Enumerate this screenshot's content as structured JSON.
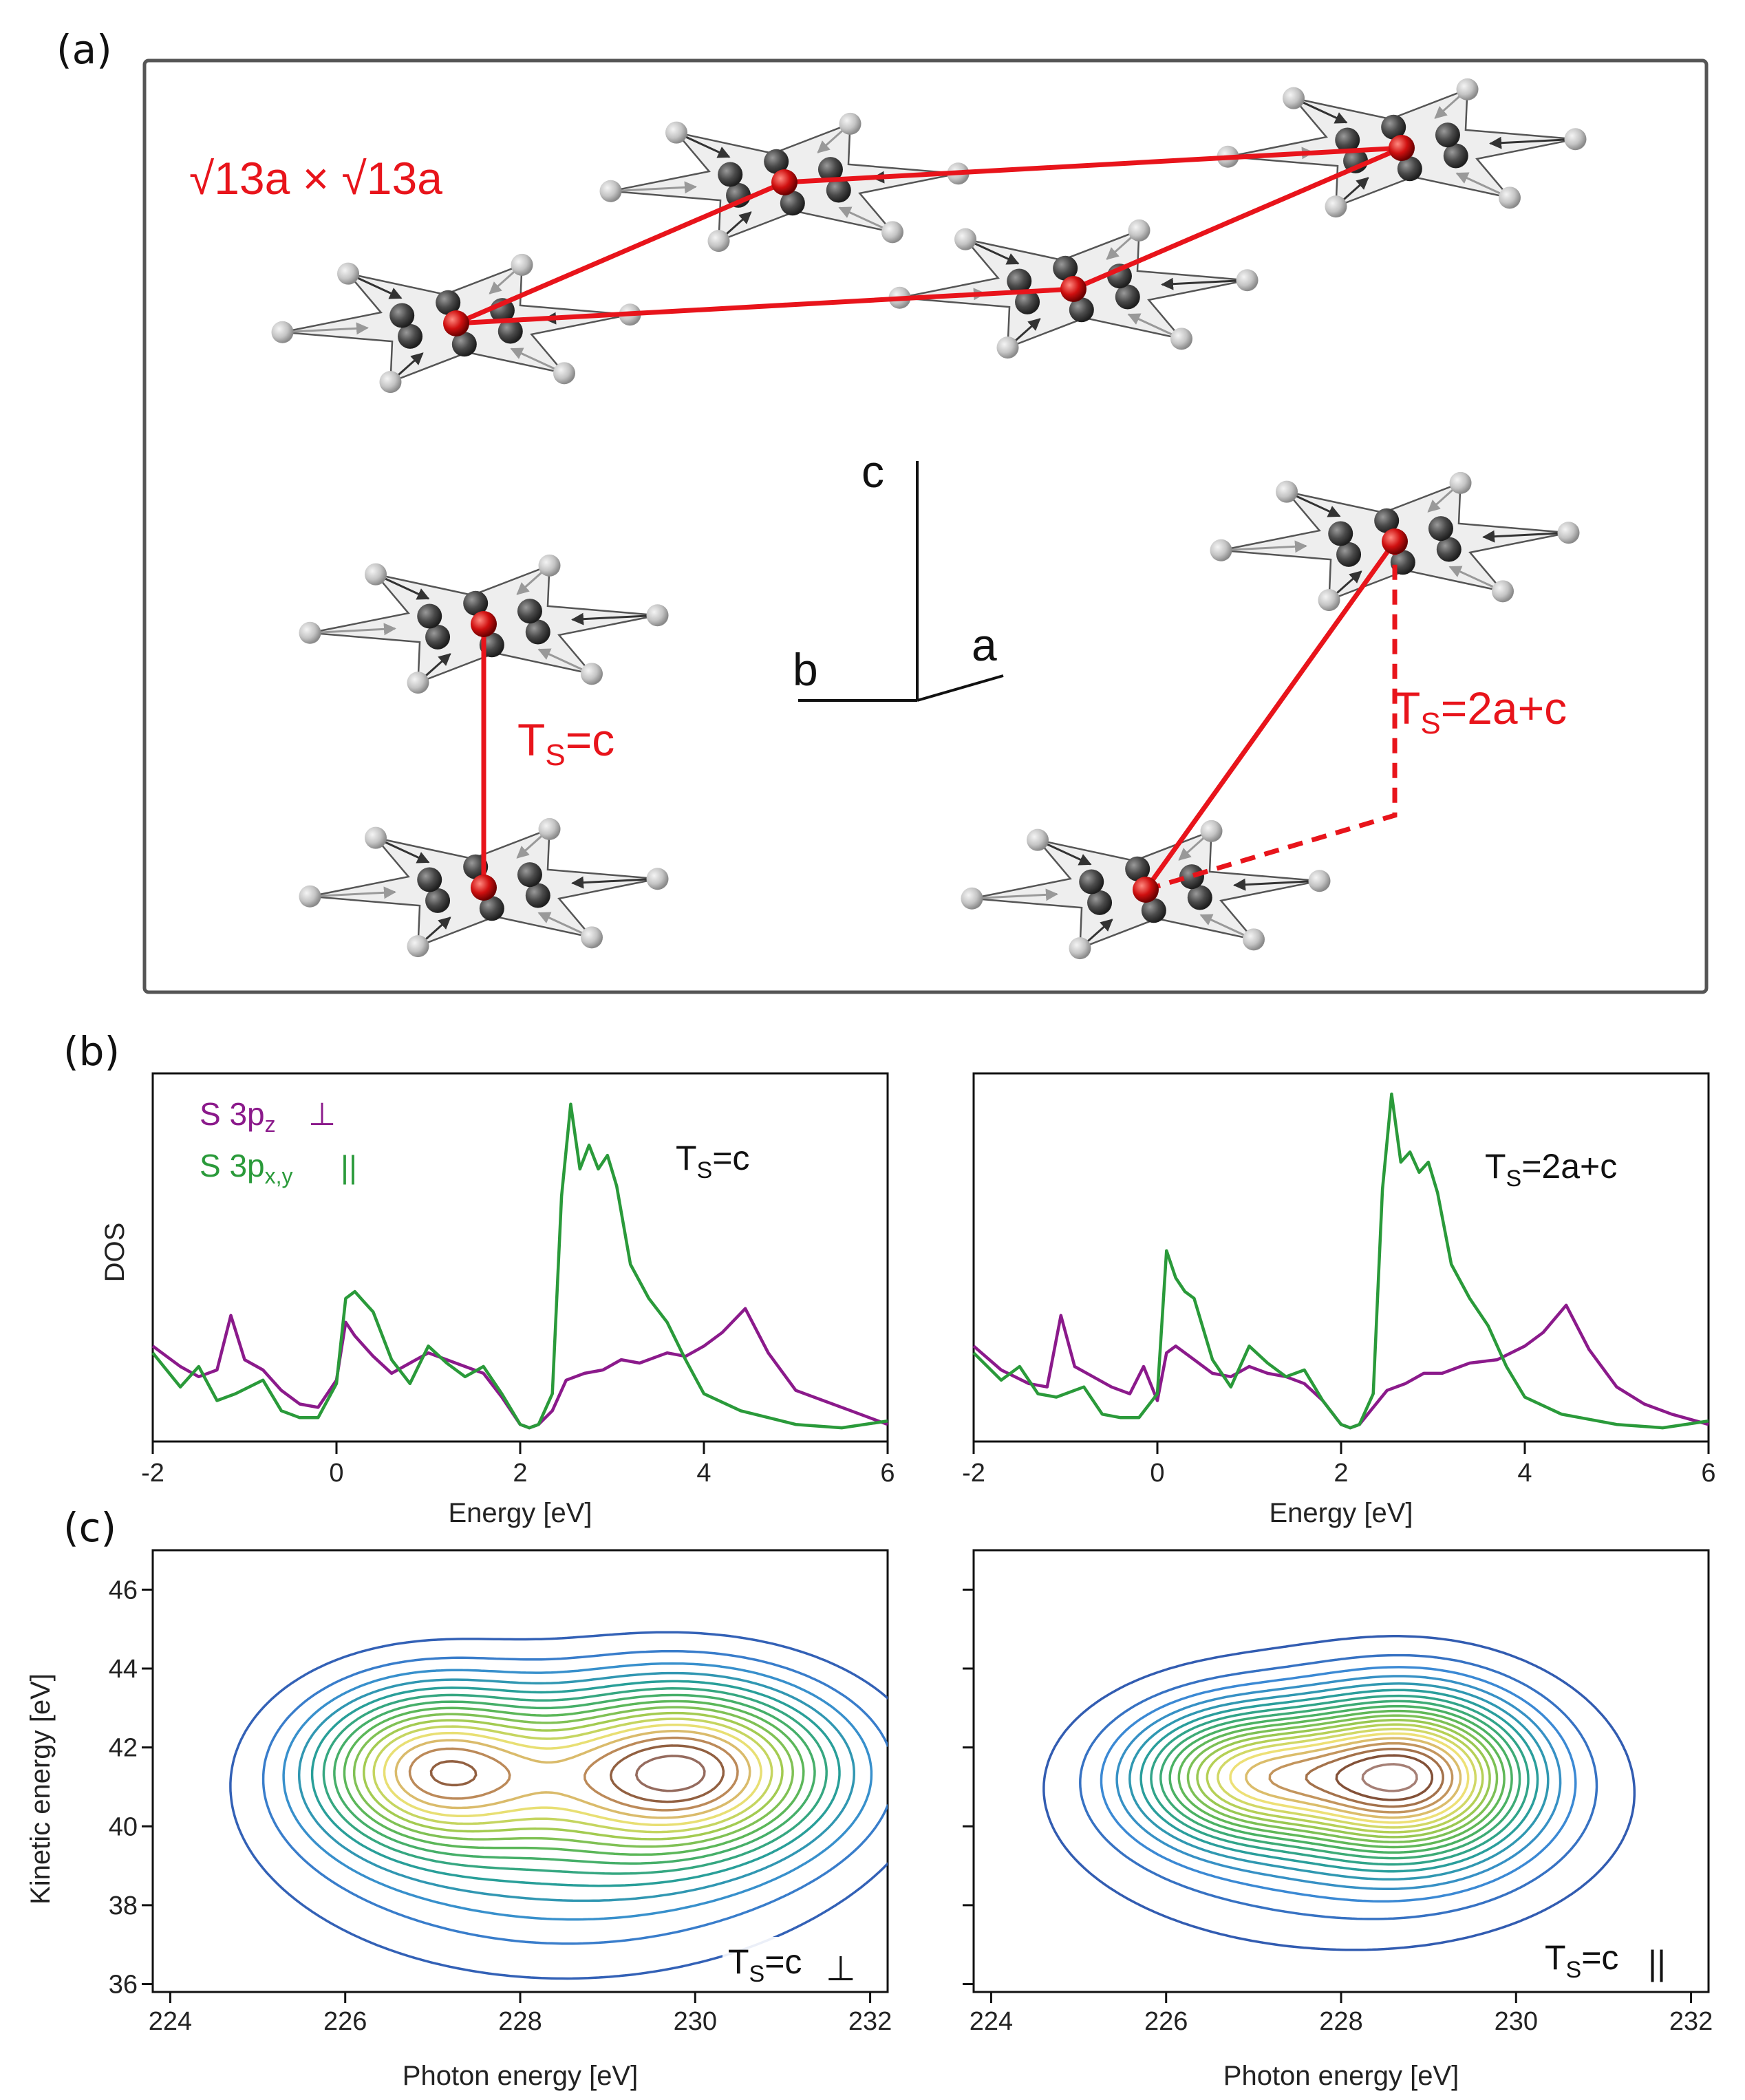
{
  "figure": {
    "panel_a": {
      "letter": "(a)",
      "cell_label": "√13a × √13a",
      "label_left": "Ts=c",
      "label_right": "Ts=2a+c",
      "axes": {
        "c": "c",
        "b": "b",
        "a": "a"
      },
      "colors": {
        "red": "#e8141b",
        "dark_atom": "#4a4a4a",
        "light_atom": "#c4c4c4",
        "plane": "#eeeeee"
      }
    },
    "panel_b": {
      "letter": "(b)",
      "ylabel": "DOS",
      "xlabel": "Energy [eV]",
      "legend": [
        {
          "name": "S 3pz",
          "symbol": "⊥",
          "color": "#8b1a8b"
        },
        {
          "name": "S 3px,y",
          "symbol": "||",
          "color": "#2a9a3a"
        }
      ],
      "left_label": "Ts=c",
      "right_label": "Ts=2a+c"
    },
    "panel_c": {
      "letter": "(c)",
      "ylabel": "Kinetic energy [eV]",
      "xlabel": "Photon energy [eV]",
      "left_label": "Ts=c",
      "left_symbol": "⊥",
      "right_label": "Ts=c",
      "right_symbol": "||"
    }
  },
  "chart_data": [
    {
      "type": "line",
      "title": "Ts=c",
      "xlabel": "Energy [eV]",
      "ylabel": "DOS",
      "xlim": [
        -2,
        6
      ],
      "ylim": [
        0,
        1
      ],
      "xticks": [
        -2,
        0,
        2,
        4,
        6
      ],
      "series": [
        {
          "name": "S 3pz ⊥",
          "color": "#8b1a8b",
          "x": [
            -2,
            -1.7,
            -1.5,
            -1.3,
            -1.15,
            -1.0,
            -0.8,
            -0.6,
            -0.4,
            -0.2,
            0,
            0.1,
            0.2,
            0.4,
            0.6,
            0.8,
            1.0,
            1.2,
            1.4,
            1.6,
            1.8,
            2.0,
            2.1,
            2.2,
            2.35,
            2.5,
            2.7,
            2.9,
            3.1,
            3.3,
            3.6,
            3.8,
            4.0,
            4.2,
            4.45,
            4.7,
            5.0,
            5.3,
            5.6,
            6.0
          ],
          "y": [
            0.26,
            0.2,
            0.17,
            0.19,
            0.35,
            0.22,
            0.19,
            0.13,
            0.09,
            0.08,
            0.16,
            0.33,
            0.29,
            0.23,
            0.18,
            0.21,
            0.24,
            0.22,
            0.2,
            0.18,
            0.11,
            0.03,
            0.02,
            0.03,
            0.07,
            0.16,
            0.18,
            0.19,
            0.22,
            0.21,
            0.24,
            0.23,
            0.26,
            0.3,
            0.37,
            0.24,
            0.13,
            0.1,
            0.07,
            0.03
          ]
        },
        {
          "name": "S 3px,y ||",
          "color": "#2a9a3a",
          "x": [
            -2,
            -1.7,
            -1.5,
            -1.3,
            -1.1,
            -0.8,
            -0.6,
            -0.4,
            -0.2,
            0,
            0.1,
            0.2,
            0.3,
            0.4,
            0.6,
            0.8,
            1.0,
            1.2,
            1.4,
            1.6,
            1.8,
            2.0,
            2.1,
            2.2,
            2.35,
            2.45,
            2.55,
            2.65,
            2.75,
            2.85,
            2.95,
            3.05,
            3.2,
            3.4,
            3.6,
            3.8,
            4.0,
            4.4,
            5.0,
            5.5,
            6.0
          ],
          "y": [
            0.24,
            0.14,
            0.2,
            0.1,
            0.12,
            0.16,
            0.07,
            0.05,
            0.05,
            0.15,
            0.4,
            0.42,
            0.39,
            0.36,
            0.22,
            0.15,
            0.26,
            0.21,
            0.17,
            0.2,
            0.12,
            0.03,
            0.02,
            0.03,
            0.12,
            0.7,
            0.97,
            0.78,
            0.85,
            0.78,
            0.82,
            0.73,
            0.5,
            0.4,
            0.33,
            0.22,
            0.12,
            0.07,
            0.03,
            0.02,
            0.04
          ]
        }
      ]
    },
    {
      "type": "line",
      "title": "Ts=2a+c",
      "xlabel": "Energy [eV]",
      "ylabel": "DOS",
      "xlim": [
        -2,
        6
      ],
      "ylim": [
        0,
        1
      ],
      "xticks": [
        -2,
        0,
        2,
        4,
        6
      ],
      "series": [
        {
          "name": "S 3pz ⊥",
          "color": "#8b1a8b",
          "x": [
            -2,
            -1.7,
            -1.4,
            -1.2,
            -1.05,
            -0.9,
            -0.7,
            -0.5,
            -0.3,
            -0.15,
            0,
            0.1,
            0.2,
            0.4,
            0.6,
            0.8,
            1.0,
            1.2,
            1.4,
            1.6,
            1.8,
            2.0,
            2.1,
            2.2,
            2.35,
            2.5,
            2.7,
            2.9,
            3.1,
            3.4,
            3.7,
            4.0,
            4.2,
            4.45,
            4.7,
            5.0,
            5.3,
            5.6,
            6.0
          ],
          "y": [
            0.26,
            0.19,
            0.15,
            0.14,
            0.35,
            0.2,
            0.17,
            0.14,
            0.12,
            0.2,
            0.1,
            0.24,
            0.26,
            0.22,
            0.18,
            0.17,
            0.2,
            0.18,
            0.17,
            0.15,
            0.1,
            0.03,
            0.02,
            0.03,
            0.08,
            0.13,
            0.15,
            0.18,
            0.18,
            0.21,
            0.22,
            0.26,
            0.3,
            0.38,
            0.25,
            0.14,
            0.09,
            0.06,
            0.03
          ]
        },
        {
          "name": "S 3px,y ||",
          "color": "#2a9a3a",
          "x": [
            -2,
            -1.7,
            -1.5,
            -1.3,
            -1.1,
            -0.8,
            -0.6,
            -0.4,
            -0.2,
            0,
            0.1,
            0.2,
            0.3,
            0.4,
            0.6,
            0.8,
            1.0,
            1.2,
            1.4,
            1.6,
            1.8,
            2.0,
            2.1,
            2.2,
            2.35,
            2.45,
            2.55,
            2.65,
            2.75,
            2.85,
            2.95,
            3.05,
            3.2,
            3.4,
            3.6,
            3.8,
            4.0,
            4.4,
            5.0,
            5.5,
            6.0
          ],
          "y": [
            0.24,
            0.16,
            0.2,
            0.12,
            0.11,
            0.14,
            0.06,
            0.05,
            0.05,
            0.12,
            0.54,
            0.46,
            0.42,
            0.4,
            0.22,
            0.14,
            0.26,
            0.21,
            0.17,
            0.19,
            0.1,
            0.03,
            0.02,
            0.03,
            0.12,
            0.72,
            1.0,
            0.8,
            0.83,
            0.77,
            0.8,
            0.71,
            0.5,
            0.4,
            0.32,
            0.2,
            0.11,
            0.06,
            0.03,
            0.02,
            0.04
          ]
        }
      ]
    },
    {
      "type": "heatmap",
      "title": "Ts=c ⊥",
      "xlabel": "Photon energy [eV]",
      "ylabel": "Kinetic energy [eV]",
      "xlim": [
        223.8,
        232.2
      ],
      "ylim": [
        35.8,
        47
      ],
      "xticks": [
        224,
        226,
        228,
        230,
        232
      ],
      "yticks": [
        36,
        38,
        40,
        42,
        44,
        46
      ],
      "peaks": [
        {
          "x": 227.0,
          "y": 41.5,
          "amp": 0.78,
          "sx": 1.3,
          "sy": 1.9
        },
        {
          "x": 229.9,
          "y": 41.5,
          "amp": 0.9,
          "sx": 1.6,
          "sy": 2.0
        },
        {
          "x": 228.5,
          "y": 40.0,
          "amp": 0.35,
          "sx": 2.6,
          "sy": 3.0
        }
      ],
      "levels": 16
    },
    {
      "type": "heatmap",
      "title": "Ts=c ||",
      "xlabel": "Photon energy [eV]",
      "ylabel": "Kinetic energy [eV]",
      "xlim": [
        223.8,
        232.2
      ],
      "ylim": [
        35.8,
        47
      ],
      "xticks": [
        224,
        226,
        228,
        230,
        232
      ],
      "yticks": [
        36,
        38,
        40,
        42,
        44,
        46
      ],
      "peaks": [
        {
          "x": 226.9,
          "y": 41.3,
          "amp": 0.95,
          "sx": 1.2,
          "sy": 1.6
        },
        {
          "x": 228.8,
          "y": 41.3,
          "amp": 1.35,
          "sx": 1.25,
          "sy": 1.9
        },
        {
          "x": 228.0,
          "y": 40.5,
          "amp": 0.35,
          "sx": 2.6,
          "sy": 3.0
        }
      ],
      "levels": 20
    }
  ]
}
